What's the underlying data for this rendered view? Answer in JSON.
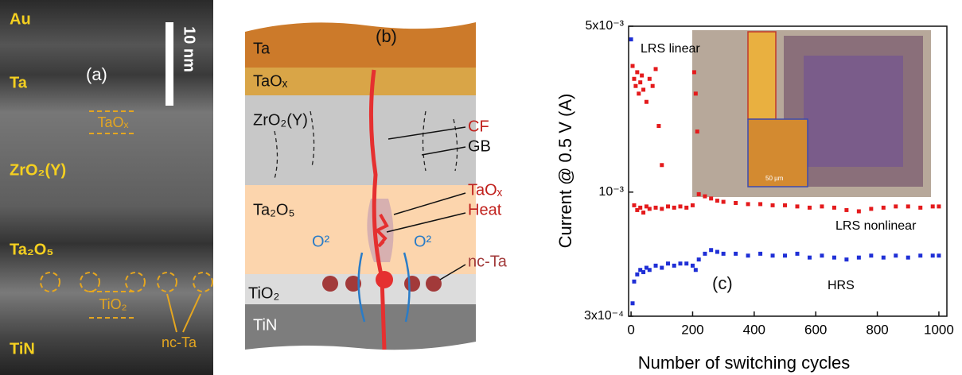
{
  "panel_a": {
    "label": "(a)",
    "scale_bar": "10 nm",
    "layers": [
      "Au",
      "Ta",
      "ZrO₂(Y)",
      "Ta₂O₅",
      "TiN"
    ],
    "annotations": [
      "TaOₓ",
      "TiO₂",
      "nc-Ta"
    ]
  },
  "panel_b": {
    "label": "(b)",
    "layers": [
      "Ta",
      "TaOₓ",
      "ZrO₂(Y)",
      "Ta₂O₅",
      "TiO₂",
      "TiN"
    ],
    "annotations": [
      "CF",
      "GB",
      "TaOₓ",
      "Heat",
      "O²",
      "O²",
      "nc-Ta"
    ]
  },
  "chart_data": {
    "type": "scatter",
    "label": "(c)",
    "x_label": "Number of switching cycles",
    "y_label": "Current @ 0.5 V (A)",
    "annotations": [
      "LRS linear",
      "LRS nonlinear",
      "HRS"
    ],
    "inset_scale": "50 µm",
    "xlim": [
      -8,
      1026
    ],
    "ylim": [
      0.0003,
      0.005
    ],
    "log_y": true,
    "xticks": [
      0,
      200,
      400,
      600,
      800,
      1000
    ],
    "yticks": [
      {
        "value": 0.0003,
        "label": "3x10⁻⁴"
      },
      {
        "value": 0.001,
        "label": "10⁻³"
      },
      {
        "value": 0.005,
        "label": "5x10⁻³"
      }
    ],
    "series": [
      {
        "color": "#e41a1c",
        "x": [
          5,
          10,
          15,
          20,
          25,
          30,
          35,
          40,
          50,
          60,
          70,
          80,
          90,
          100,
          10,
          20,
          30,
          40,
          50,
          60,
          80,
          100,
          120,
          140,
          160,
          180,
          200,
          205,
          210,
          215,
          220,
          240,
          260,
          280,
          300,
          340,
          380,
          420,
          460,
          500,
          540,
          580,
          620,
          660,
          700,
          740,
          780,
          820,
          860,
          900,
          940,
          980,
          1000
        ],
        "values": [
          0.0034,
          0.003,
          0.0028,
          0.0032,
          0.0026,
          0.0029,
          0.0031,
          0.0027,
          0.0024,
          0.003,
          0.0028,
          0.0033,
          0.0019,
          0.0013,
          0.00088,
          0.00084,
          0.00086,
          0.00082,
          0.00087,
          0.00085,
          0.00086,
          0.00085,
          0.00087,
          0.00086,
          0.00087,
          0.00086,
          0.00088,
          0.0032,
          0.0026,
          0.0018,
          0.00098,
          0.00096,
          0.00094,
          0.00092,
          0.00091,
          0.0009,
          0.00089,
          0.00089,
          0.00088,
          0.00088,
          0.00087,
          0.00086,
          0.00087,
          0.00086,
          0.00084,
          0.00083,
          0.00085,
          0.00086,
          0.00087,
          0.00087,
          0.00086,
          0.00087,
          0.00087
        ]
      },
      {
        "color": "#1f2fd6",
        "x": [
          0,
          5,
          10,
          20,
          30,
          40,
          50,
          60,
          80,
          100,
          120,
          140,
          160,
          180,
          200,
          210,
          220,
          240,
          260,
          280,
          300,
          340,
          380,
          420,
          460,
          500,
          540,
          580,
          620,
          660,
          700,
          740,
          780,
          820,
          860,
          900,
          940,
          980,
          1000
        ],
        "values": [
          0.0044,
          0.00034,
          0.00042,
          0.00045,
          0.00047,
          0.00046,
          0.00048,
          0.00047,
          0.00049,
          0.00048,
          0.0005,
          0.00049,
          0.0005,
          0.0005,
          0.00049,
          0.00047,
          0.00052,
          0.00055,
          0.00057,
          0.00056,
          0.00055,
          0.00055,
          0.00054,
          0.00055,
          0.00054,
          0.00054,
          0.00055,
          0.00053,
          0.00054,
          0.00053,
          0.00052,
          0.00053,
          0.00054,
          0.00053,
          0.00054,
          0.00053,
          0.00054,
          0.00054,
          0.00054
        ]
      }
    ]
  }
}
